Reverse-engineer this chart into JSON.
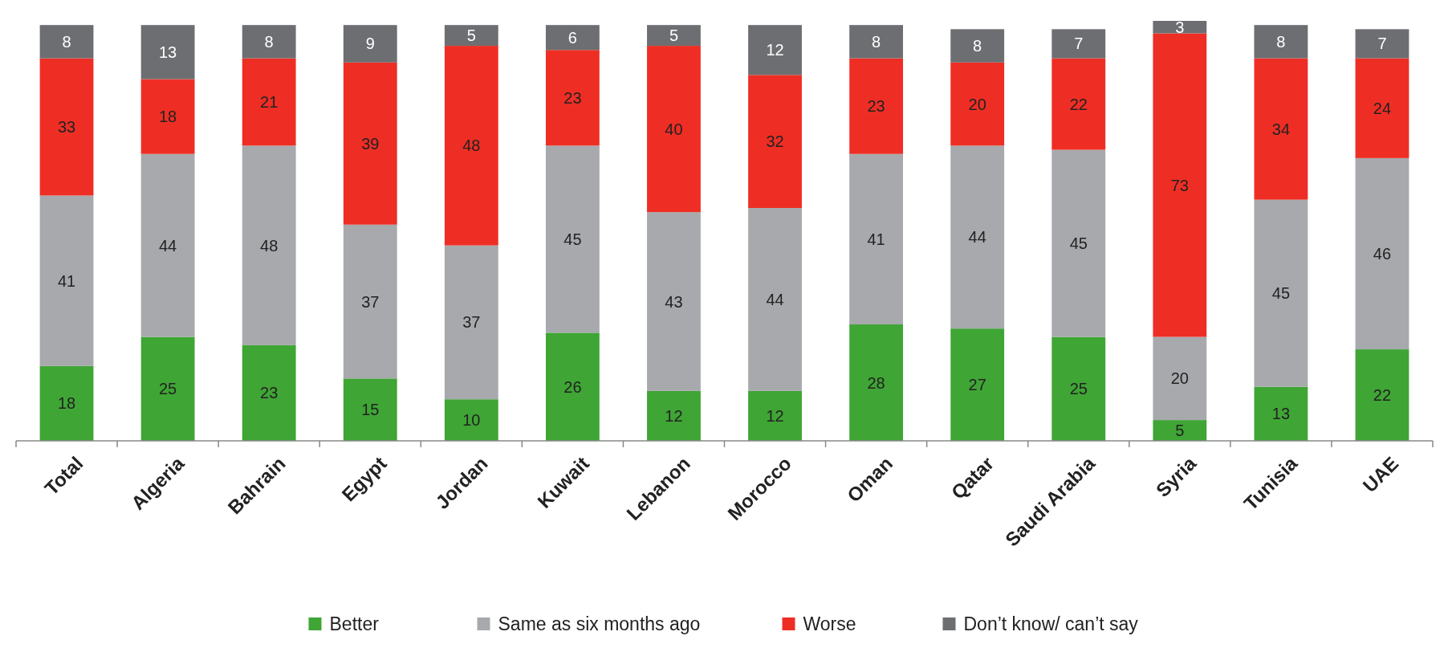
{
  "chart_data": {
    "type": "bar",
    "stacked": true,
    "data_labels": true,
    "legend": "bottom",
    "categories": [
      "Total",
      "Algeria",
      "Bahrain",
      "Egypt",
      "Jordan",
      "Kuwait",
      "Lebanon",
      "Morocco",
      "Oman",
      "Qatar",
      "Saudi Arabia",
      "Syria",
      "Tunisia",
      "UAE"
    ],
    "series": [
      {
        "name": "Better",
        "color": "#3fa535",
        "values": [
          18,
          25,
          23,
          15,
          10,
          26,
          12,
          12,
          28,
          27,
          25,
          5,
          13,
          22
        ]
      },
      {
        "name": "Same as six months ago",
        "color": "#a7a9ac",
        "values": [
          41,
          44,
          48,
          37,
          37,
          45,
          43,
          44,
          41,
          44,
          45,
          20,
          45,
          46
        ]
      },
      {
        "name": "Worse",
        "color": "#ee2e24",
        "values": [
          33,
          18,
          21,
          39,
          48,
          23,
          40,
          32,
          23,
          20,
          22,
          73,
          34,
          24
        ]
      },
      {
        "name": "Don’t know/ can’t say",
        "color": "#6d6e71",
        "values": [
          8,
          13,
          8,
          9,
          5,
          6,
          5,
          12,
          8,
          8,
          7,
          3,
          8,
          7
        ]
      }
    ]
  }
}
